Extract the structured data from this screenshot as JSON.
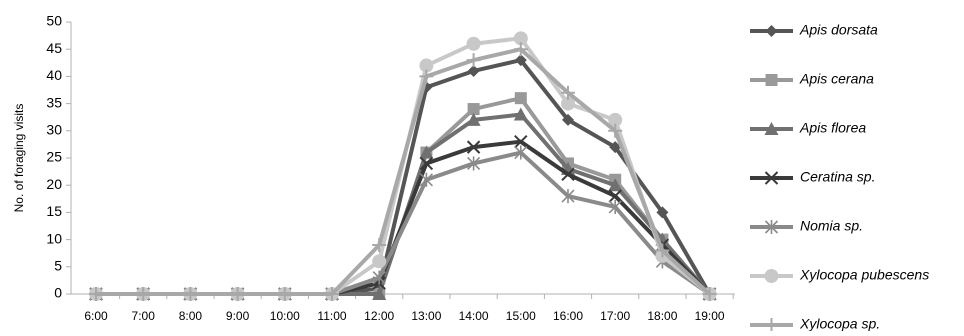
{
  "chart_data": {
    "type": "line",
    "categories": [
      "6:00",
      "7:00",
      "8:00",
      "9:00",
      "10:00",
      "11:00",
      "12:00",
      "13:00",
      "14:00",
      "15:00",
      "16:00",
      "17:00",
      "18:00",
      "19:00"
    ],
    "ylabel": "No. of foraging visits",
    "xlabel": "",
    "ylim": [
      0,
      50
    ],
    "yticks": [
      0,
      5,
      10,
      15,
      20,
      25,
      30,
      35,
      40,
      45,
      50
    ],
    "grid": false,
    "legend_position": "right",
    "series": [
      {
        "name": "Apis dorsata",
        "color": "#555555",
        "marker": "diamond",
        "values": [
          0,
          0,
          0,
          0,
          0,
          0,
          1,
          38,
          41,
          43,
          32,
          27,
          15,
          0
        ]
      },
      {
        "name": "Apis cerana",
        "color": "#999999",
        "marker": "square",
        "values": [
          0,
          0,
          0,
          0,
          0,
          0,
          0,
          26,
          34,
          36,
          24,
          21,
          10,
          0
        ]
      },
      {
        "name": "Apis florea",
        "color": "#707070",
        "marker": "triangle",
        "values": [
          0,
          0,
          0,
          0,
          0,
          0,
          0,
          26,
          32,
          33,
          23,
          20,
          10,
          0
        ]
      },
      {
        "name": "Ceratina sp.",
        "color": "#3a3a3a",
        "marker": "x",
        "values": [
          0,
          0,
          0,
          0,
          0,
          0,
          2,
          24,
          27,
          28,
          22,
          18,
          9,
          0
        ]
      },
      {
        "name": "Nomia sp.",
        "color": "#8a8a8a",
        "marker": "asterisk",
        "values": [
          0,
          0,
          0,
          0,
          0,
          0,
          3,
          21,
          24,
          26,
          18,
          16,
          6,
          0
        ]
      },
      {
        "name": "Xylocopa  pubescens",
        "color": "#c8c8c8",
        "marker": "circle",
        "values": [
          0,
          0,
          0,
          0,
          0,
          0,
          6,
          42,
          46,
          47,
          35,
          32,
          7,
          0
        ]
      },
      {
        "name": "Xylocopa sp.",
        "color": "#a8a8a8",
        "marker": "plus",
        "values": [
          0,
          0,
          0,
          0,
          0,
          0,
          9,
          40,
          43,
          45,
          37,
          30,
          8,
          0
        ]
      }
    ]
  }
}
